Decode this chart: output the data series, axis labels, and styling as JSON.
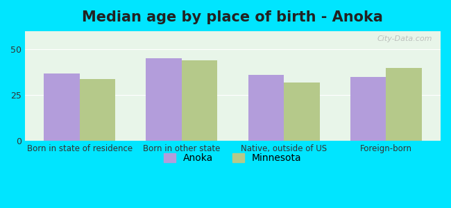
{
  "title": "Median age by place of birth - Anoka",
  "categories": [
    "Born in state of residence",
    "Born in other state",
    "Native, outside of US",
    "Foreign-born"
  ],
  "anoka_values": [
    37,
    45,
    36,
    35
  ],
  "minnesota_values": [
    34,
    44,
    32,
    40
  ],
  "anoka_color": "#b39ddb",
  "minnesota_color": "#b5c98a",
  "background_outer": "#00e5ff",
  "background_inner": "#e8f5e9",
  "ylim": [
    0,
    60
  ],
  "yticks": [
    0,
    25,
    50
  ],
  "bar_width": 0.35,
  "legend_labels": [
    "Anoka",
    "Minnesota"
  ],
  "watermark": "City-Data.com",
  "title_fontsize": 15,
  "axis_label_fontsize": 8.5,
  "legend_fontsize": 10
}
